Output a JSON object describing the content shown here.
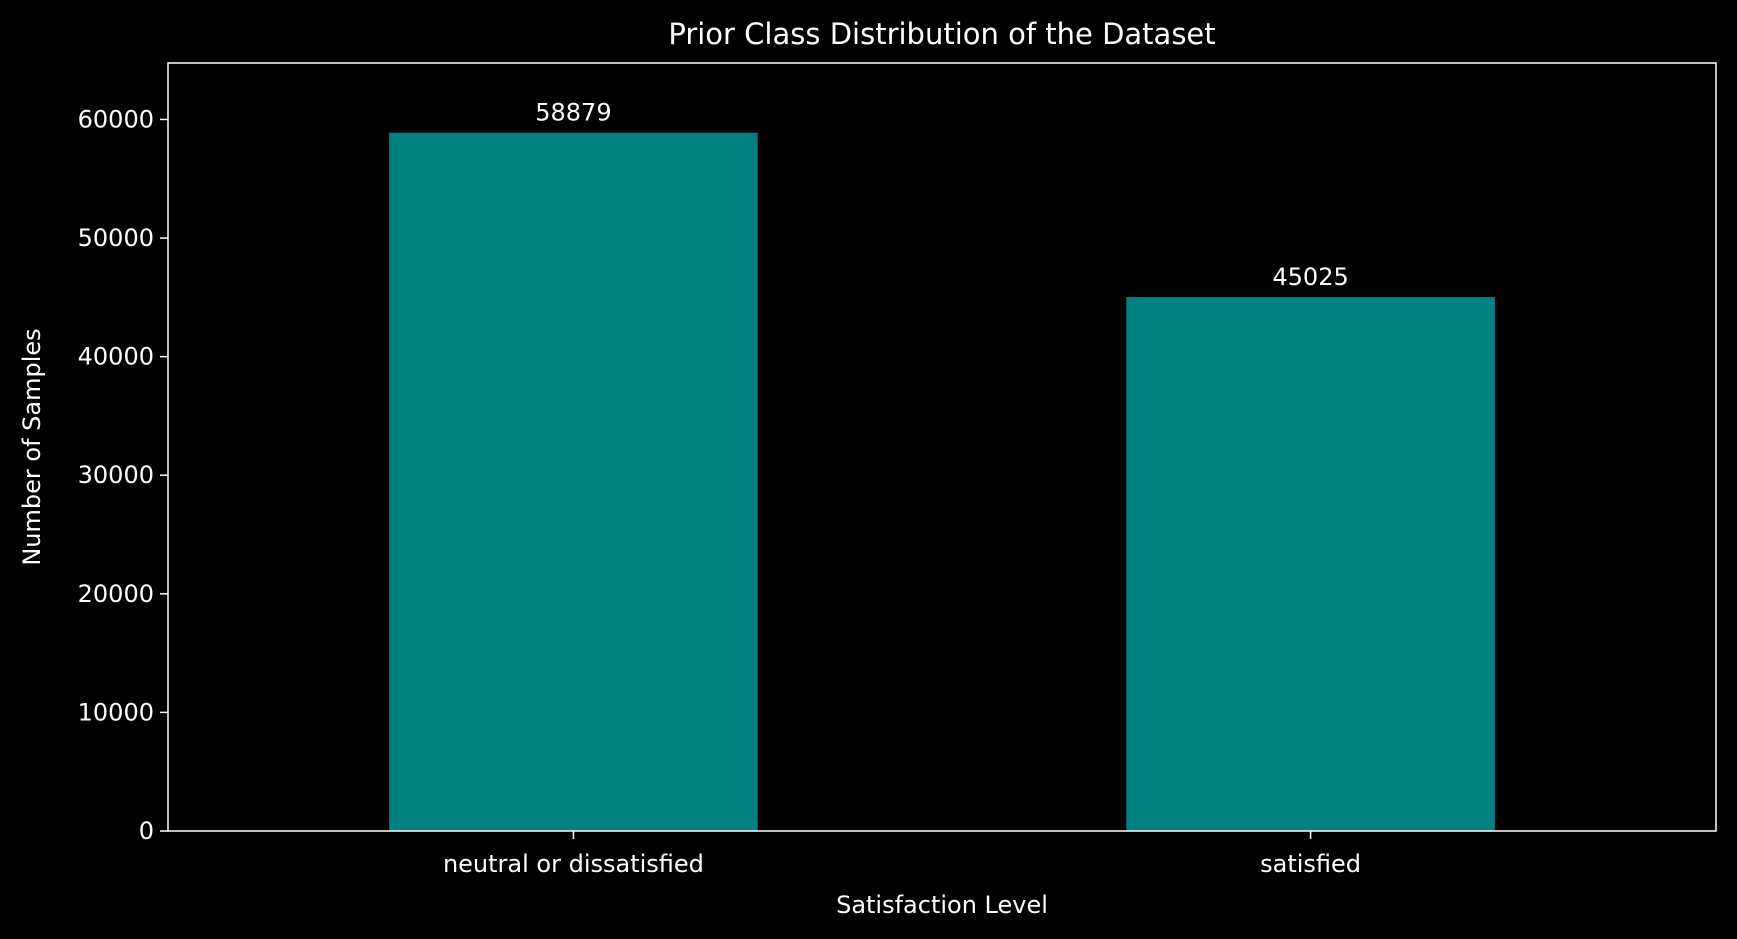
{
  "chart_data": {
    "type": "bar",
    "title": "Prior Class Distribution of the Dataset",
    "xlabel": "Satisfaction Level",
    "ylabel": "Number of Samples",
    "categories": [
      "neutral or dissatisfied",
      "satisfied"
    ],
    "values": [
      58879,
      45025
    ],
    "data_labels": [
      "58879",
      "45025"
    ],
    "ylim": [
      0,
      64760
    ],
    "yticks": [
      0,
      10000,
      20000,
      30000,
      40000,
      50000,
      60000
    ],
    "ytick_labels": [
      "0",
      "10000",
      "20000",
      "30000",
      "40000",
      "50000",
      "60000"
    ],
    "grid": false,
    "legend": "none",
    "colors": {
      "background": "#000000",
      "bar": "#008080",
      "axes": "#ffffff",
      "text": "#ffffff"
    }
  }
}
